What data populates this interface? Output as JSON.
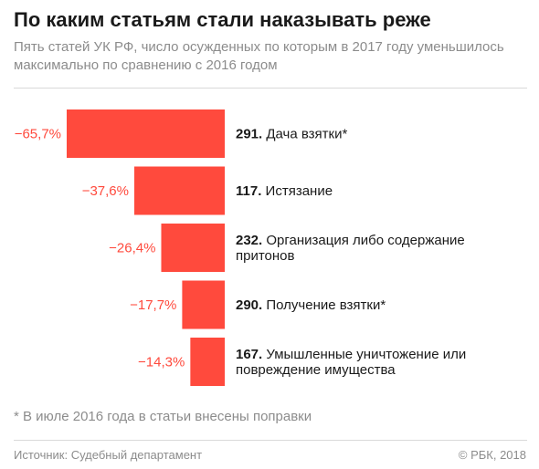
{
  "header": {
    "title": "По каким статьям стали наказывать реже",
    "subtitle": "Пять статей УК РФ, число осужденных по которым в 2017 году уменьшилось максимально по сравнению с 2016 годом"
  },
  "footer": {
    "footnote": "* В июле 2016 года в статьи внесены поправки",
    "source": "Источник: Судебный департамент",
    "copyright": "© РБК, 2018"
  },
  "colors": {
    "bar": "#ff4a3d",
    "value_label": "#ff4a3d",
    "text": "#1a1a1a",
    "muted": "#8c8c8c"
  },
  "chart_data": {
    "type": "bar",
    "orientation": "horizontal",
    "direction": "bars extend left from a shared right baseline",
    "title": "По каким статьям стали наказывать реже",
    "xlabel": "",
    "ylabel": "",
    "unit": "%",
    "categories": [
      {
        "article": "291.",
        "name": "Дача взятки*"
      },
      {
        "article": "117.",
        "name": "Истязание"
      },
      {
        "article": "232.",
        "name": "Организация либо содержание притонов"
      },
      {
        "article": "290.",
        "name": "Получение взятки*"
      },
      {
        "article": "167.",
        "name": "Умышленные уничтожение или повреждение имущества"
      }
    ],
    "values": [
      -65.7,
      -37.6,
      -26.4,
      -17.7,
      -14.3
    ],
    "value_labels": [
      "−65,7%",
      "−37,6%",
      "−26,4%",
      "−17,7%",
      "−14,3%"
    ],
    "grid": false,
    "legend": "none"
  }
}
